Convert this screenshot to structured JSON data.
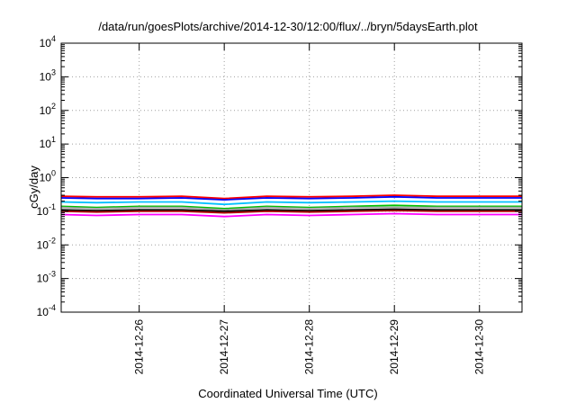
{
  "chart_data": {
    "type": "line",
    "title": "/data/run/goesPlots/archive/2014-12-30/12:00/flux/../bryn/5daysEarth.plot",
    "xlabel": "Coordinated Universal Time (UTC)",
    "ylabel": "cGy/day",
    "yscale": "log",
    "ylim": [
      0.0001,
      10000
    ],
    "xlim": [
      "2014-12-25T02:00",
      "2014-12-30T12:00"
    ],
    "grid": true,
    "legend": "none",
    "x_ticks": [
      "2014-12-26",
      "2014-12-27",
      "2014-12-28",
      "2014-12-29",
      "2014-12-30"
    ],
    "y_ticks": [
      {
        "base": "10",
        "exp": "-4"
      },
      {
        "base": "10",
        "exp": "-3"
      },
      {
        "base": "10",
        "exp": "-2"
      },
      {
        "base": "10",
        "exp": "-1"
      },
      {
        "base": "10",
        "exp": "0"
      },
      {
        "base": "10",
        "exp": "1"
      },
      {
        "base": "10",
        "exp": "2"
      },
      {
        "base": "10",
        "exp": "3"
      },
      {
        "base": "10",
        "exp": "4"
      }
    ],
    "x": [
      "2014-12-25T02:00",
      "2014-12-25T12:00",
      "2014-12-26T00:00",
      "2014-12-26T12:00",
      "2014-12-27T00:00",
      "2014-12-27T12:00",
      "2014-12-28T00:00",
      "2014-12-28T12:00",
      "2014-12-29T00:00",
      "2014-12-29T12:00",
      "2014-12-30T00:00",
      "2014-12-30T12:00"
    ],
    "series": [
      {
        "color": "#ff0000",
        "values": [
          0.28,
          0.27,
          0.27,
          0.28,
          0.24,
          0.28,
          0.27,
          0.28,
          0.3,
          0.28,
          0.28,
          0.28
        ]
      },
      {
        "color": "#0000ff",
        "values": [
          0.25,
          0.24,
          0.24,
          0.25,
          0.22,
          0.25,
          0.24,
          0.25,
          0.27,
          0.25,
          0.25,
          0.25
        ]
      },
      {
        "color": "#00c0ff",
        "values": [
          0.19,
          0.18,
          0.19,
          0.19,
          0.16,
          0.19,
          0.18,
          0.19,
          0.2,
          0.19,
          0.19,
          0.19
        ]
      },
      {
        "color": "#00c000",
        "values": [
          0.14,
          0.13,
          0.14,
          0.14,
          0.12,
          0.14,
          0.13,
          0.14,
          0.15,
          0.14,
          0.14,
          0.14
        ]
      },
      {
        "color": "#a0a0a0",
        "values": [
          0.13,
          0.12,
          0.13,
          0.13,
          0.11,
          0.13,
          0.12,
          0.13,
          0.13,
          0.13,
          0.13,
          0.13
        ]
      },
      {
        "color": "#000000",
        "values": [
          0.11,
          0.105,
          0.11,
          0.11,
          0.1,
          0.11,
          0.105,
          0.11,
          0.115,
          0.11,
          0.11,
          0.11
        ]
      },
      {
        "color": "#b00000",
        "values": [
          0.1,
          0.095,
          0.1,
          0.1,
          0.09,
          0.1,
          0.095,
          0.1,
          0.105,
          0.1,
          0.1,
          0.1
        ]
      },
      {
        "color": "#ff00ff",
        "values": [
          0.08,
          0.075,
          0.08,
          0.08,
          0.07,
          0.08,
          0.075,
          0.08,
          0.085,
          0.08,
          0.08,
          0.08
        ]
      }
    ]
  }
}
